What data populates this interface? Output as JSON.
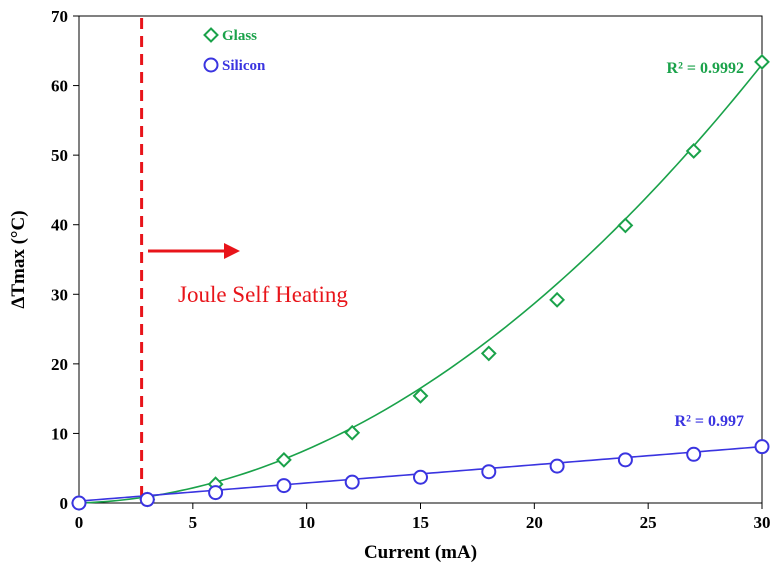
{
  "chart_data": {
    "type": "scatter",
    "xlabel": "Current (mA)",
    "ylabel": "ΔTmax (°C)",
    "xlim": [
      0,
      30
    ],
    "ylim": [
      0,
      70
    ],
    "x_ticks": [
      0,
      5,
      10,
      15,
      20,
      25,
      30
    ],
    "y_ticks": [
      0,
      10,
      20,
      30,
      40,
      50,
      60,
      70
    ],
    "grid": false,
    "legend_position": "top-left",
    "series": [
      {
        "name": "Glass",
        "marker": "diamond",
        "color": "#1aa24a",
        "x": [
          0,
          3,
          6,
          9,
          12,
          15,
          18,
          21,
          24,
          27,
          30
        ],
        "y": [
          0,
          0.5,
          2.7,
          6.2,
          10.1,
          15.4,
          21.5,
          29.2,
          39.9,
          50.6,
          63.4
        ],
        "trendline_coeffs": [
          0,
          0.1,
          0.0667
        ],
        "r2": "R² = 0.9992"
      },
      {
        "name": "Silicon",
        "marker": "circle",
        "color": "#3a34e0",
        "x": [
          0,
          3,
          6,
          9,
          12,
          15,
          18,
          21,
          24,
          27,
          30
        ],
        "y": [
          0,
          0.5,
          1.5,
          2.5,
          3.0,
          3.7,
          4.5,
          5.3,
          6.2,
          7.0,
          8.1
        ],
        "trendline_coeffs": [
          0.27,
          0.261,
          0
        ],
        "r2": "R² = 0.997"
      }
    ],
    "threshold_line": {
      "x": 2.75,
      "color": "#e8141a",
      "style": "dashed"
    },
    "annotation": {
      "text": "Joule Self Heating",
      "color": "#e8141a"
    }
  }
}
